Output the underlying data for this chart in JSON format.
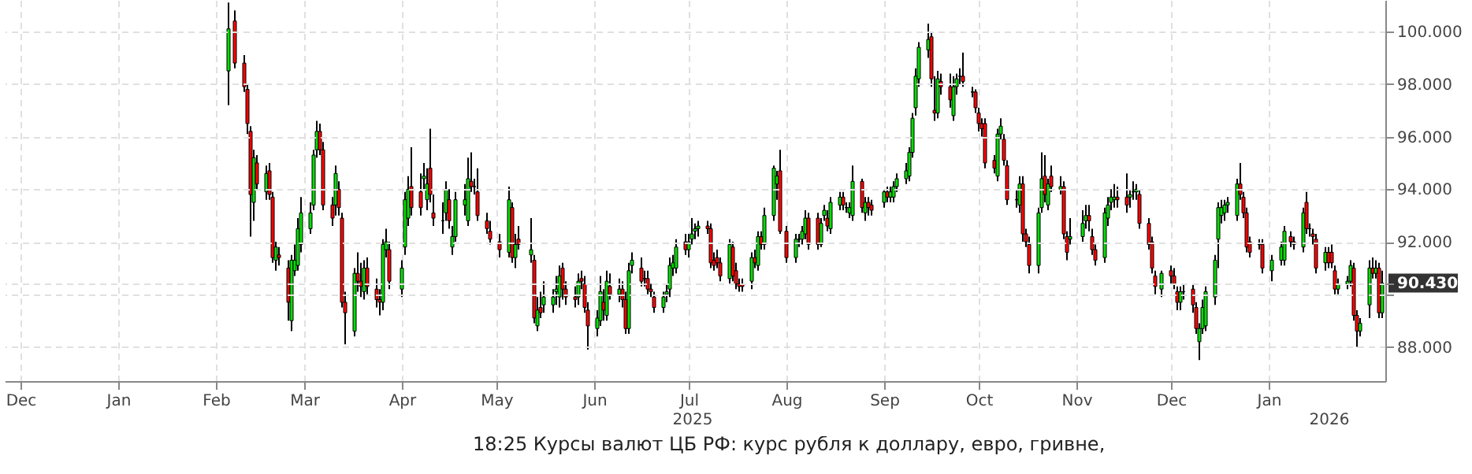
{
  "chart_data": {
    "type": "candlestick",
    "x": [
      "2025-02-05",
      "2025-02-07",
      "2025-02-10",
      "2025-02-11",
      "2025-02-12",
      "2025-02-13",
      "2025-02-14",
      "2025-02-17",
      "2025-02-18",
      "2025-02-19",
      "2025-02-20",
      "2025-02-21",
      "2025-02-24",
      "2025-02-25",
      "2025-02-26",
      "2025-02-27",
      "2025-02-28",
      "2025-03-03",
      "2025-03-04",
      "2025-03-05",
      "2025-03-06",
      "2025-03-07",
      "2025-03-10",
      "2025-03-11",
      "2025-03-12",
      "2025-03-13",
      "2025-03-14",
      "2025-03-17",
      "2025-03-18",
      "2025-03-19",
      "2025-03-20",
      "2025-03-21",
      "2025-03-24",
      "2025-03-25",
      "2025-03-26",
      "2025-03-27",
      "2025-03-28",
      "2025-04-01",
      "2025-04-02",
      "2025-04-03",
      "2025-04-04",
      "2025-04-07",
      "2025-04-08",
      "2025-04-09",
      "2025-04-10",
      "2025-04-11",
      "2025-04-14",
      "2025-04-15",
      "2025-04-16",
      "2025-04-17",
      "2025-04-18",
      "2025-04-21",
      "2025-04-22",
      "2025-04-23",
      "2025-04-24",
      "2025-04-25",
      "2025-04-28",
      "2025-04-29",
      "2025-05-02",
      "2025-05-05",
      "2025-05-06",
      "2025-05-07",
      "2025-05-08",
      "2025-05-12",
      "2025-05-13",
      "2025-05-14",
      "2025-05-15",
      "2025-05-16",
      "2025-05-19",
      "2025-05-20",
      "2025-05-21",
      "2025-05-22",
      "2025-05-23",
      "2025-05-26",
      "2025-05-27",
      "2025-05-28",
      "2025-05-29",
      "2025-05-30",
      "2025-06-02",
      "2025-06-03",
      "2025-06-04",
      "2025-06-05",
      "2025-06-06",
      "2025-06-09",
      "2025-06-10",
      "2025-06-11",
      "2025-06-12",
      "2025-06-13",
      "2025-06-16",
      "2025-06-17",
      "2025-06-18",
      "2025-06-19",
      "2025-06-20",
      "2025-06-23",
      "2025-06-24",
      "2025-06-25",
      "2025-06-26",
      "2025-06-27",
      "2025-06-30",
      "2025-07-01",
      "2025-07-02",
      "2025-07-03",
      "2025-07-04",
      "2025-07-07",
      "2025-07-08",
      "2025-07-09",
      "2025-07-10",
      "2025-07-11",
      "2025-07-14",
      "2025-07-15",
      "2025-07-16",
      "2025-07-17",
      "2025-07-18",
      "2025-07-21",
      "2025-07-22",
      "2025-07-23",
      "2025-07-24",
      "2025-07-25",
      "2025-07-28",
      "2025-07-29",
      "2025-07-30",
      "2025-08-01",
      "2025-08-04",
      "2025-08-05",
      "2025-08-06",
      "2025-08-07",
      "2025-08-08",
      "2025-08-11",
      "2025-08-12",
      "2025-08-13",
      "2025-08-14",
      "2025-08-15",
      "2025-08-18",
      "2025-08-19",
      "2025-08-20",
      "2025-08-21",
      "2025-08-22",
      "2025-08-25",
      "2025-08-26",
      "2025-08-27",
      "2025-08-28",
      "2025-09-01",
      "2025-09-02",
      "2025-09-03",
      "2025-09-04",
      "2025-09-05",
      "2025-09-08",
      "2025-09-09",
      "2025-09-10",
      "2025-09-11",
      "2025-09-12",
      "2025-09-15",
      "2025-09-16",
      "2025-09-17",
      "2025-09-18",
      "2025-09-19",
      "2025-09-22",
      "2025-09-23",
      "2025-09-24",
      "2025-09-25",
      "2025-09-26",
      "2025-09-29",
      "2025-09-30",
      "2025-10-01",
      "2025-10-02",
      "2025-10-03",
      "2025-10-06",
      "2025-10-07",
      "2025-10-08",
      "2025-10-09",
      "2025-10-10",
      "2025-10-13",
      "2025-10-14",
      "2025-10-15",
      "2025-10-16",
      "2025-10-17",
      "2025-10-20",
      "2025-10-21",
      "2025-10-22",
      "2025-10-23",
      "2025-10-24",
      "2025-10-27",
      "2025-10-28",
      "2025-10-29",
      "2025-10-30",
      "2025-11-03",
      "2025-11-04",
      "2025-11-05",
      "2025-11-06",
      "2025-11-07",
      "2025-11-10",
      "2025-11-11",
      "2025-11-12",
      "2025-11-13",
      "2025-11-14",
      "2025-11-17",
      "2025-11-18",
      "2025-11-19",
      "2025-11-20",
      "2025-11-21",
      "2025-11-24",
      "2025-11-25",
      "2025-11-26",
      "2025-11-28",
      "2025-12-01",
      "2025-12-02",
      "2025-12-03",
      "2025-12-04",
      "2025-12-05",
      "2025-12-08",
      "2025-12-09",
      "2025-12-10",
      "2025-12-11",
      "2025-12-12",
      "2025-12-15",
      "2025-12-16",
      "2025-12-17",
      "2025-12-18",
      "2025-12-19",
      "2025-12-22",
      "2025-12-23",
      "2025-12-24",
      "2025-12-25",
      "2025-12-26",
      "2025-12-29",
      "2025-12-30",
      "2026-01-02",
      "2026-01-05",
      "2026-01-06",
      "2026-01-08",
      "2026-01-09",
      "2026-01-12",
      "2026-01-13",
      "2026-01-14",
      "2026-01-15",
      "2026-01-16",
      "2026-01-19",
      "2026-01-20",
      "2026-01-21",
      "2026-01-22",
      "2026-01-23",
      "2026-01-26",
      "2026-01-27",
      "2026-01-28",
      "2026-01-29",
      "2026-01-30",
      "2026-02-02",
      "2026-02-03",
      "2026-02-04",
      "2026-02-05",
      "2026-02-06"
    ],
    "ohlc": [
      [
        98.5,
        101.1,
        97.2,
        100.1
      ],
      [
        100.4,
        100.8,
        98.6,
        98.8
      ],
      [
        98.8,
        99.1,
        97.7,
        97.9
      ],
      [
        97.8,
        98.0,
        96.1,
        96.5
      ],
      [
        96.2,
        96.4,
        92.2,
        93.8
      ],
      [
        93.5,
        95.5,
        92.8,
        95.2
      ],
      [
        95.0,
        95.3,
        94.0,
        94.2
      ],
      [
        93.9,
        94.9,
        93.6,
        94.6
      ],
      [
        94.7,
        95.0,
        93.6,
        93.8
      ],
      [
        93.7,
        93.9,
        91.2,
        91.4
      ],
      [
        91.3,
        92.0,
        90.9,
        91.8
      ],
      [
        91.5,
        91.8,
        91.1,
        91.4
      ],
      [
        91.0,
        91.3,
        89.0,
        89.7
      ],
      [
        89.0,
        91.5,
        88.6,
        91.3
      ],
      [
        90.9,
        91.9,
        90.7,
        91.3
      ],
      [
        91.1,
        92.9,
        90.9,
        92.5
      ],
      [
        91.9,
        93.7,
        91.6,
        93.1
      ],
      [
        92.5,
        93.5,
        92.3,
        93.1
      ],
      [
        93.4,
        95.5,
        93.2,
        95.3
      ],
      [
        95.5,
        96.6,
        95.2,
        96.2
      ],
      [
        96.2,
        96.5,
        95.3,
        95.5
      ],
      [
        95.5,
        95.8,
        93.2,
        93.4
      ],
      [
        93.4,
        93.7,
        92.6,
        92.9
      ],
      [
        93.4,
        94.9,
        93.0,
        94.6
      ],
      [
        94.0,
        94.3,
        93.0,
        93.3
      ],
      [
        92.9,
        93.1,
        89.5,
        89.7
      ],
      [
        89.7,
        90.1,
        88.1,
        89.3
      ],
      [
        88.6,
        91.0,
        88.4,
        90.8
      ],
      [
        90.8,
        91.6,
        90.1,
        90.5
      ],
      [
        90.5,
        91.2,
        89.9,
        90.3
      ],
      [
        90.1,
        91.3,
        89.8,
        91.0
      ],
      [
        91.0,
        91.4,
        90.0,
        90.3
      ],
      [
        90.2,
        90.6,
        89.5,
        89.8
      ],
      [
        89.8,
        90.2,
        89.2,
        89.7
      ],
      [
        89.7,
        92.1,
        89.4,
        91.9
      ],
      [
        91.7,
        92.5,
        91.4,
        92.0
      ],
      [
        91.7,
        92.0,
        90.2,
        90.5
      ],
      [
        90.2,
        91.3,
        89.9,
        91.0
      ],
      [
        91.8,
        93.9,
        91.5,
        93.6
      ],
      [
        92.9,
        94.5,
        92.6,
        94.0
      ],
      [
        94.1,
        95.6,
        93.0,
        93.3
      ],
      [
        93.9,
        94.6,
        93.0,
        93.3
      ],
      [
        94.4,
        95.0,
        94.0,
        94.5
      ],
      [
        93.6,
        94.8,
        93.2,
        94.2
      ],
      [
        94.8,
        96.3,
        93.5,
        93.8
      ],
      [
        93.1,
        93.8,
        92.6,
        92.9
      ],
      [
        92.8,
        93.5,
        92.3,
        92.8
      ],
      [
        93.1,
        94.3,
        92.8,
        94.0
      ],
      [
        93.6,
        94.0,
        92.5,
        92.8
      ],
      [
        91.8,
        92.6,
        91.5,
        92.2
      ],
      [
        92.2,
        93.9,
        92.0,
        93.6
      ],
      [
        93.4,
        94.2,
        93.0,
        93.6
      ],
      [
        92.8,
        95.2,
        92.6,
        94.4
      ],
      [
        94.3,
        95.4,
        93.9,
        94.1
      ],
      [
        94.1,
        94.4,
        93.8,
        94.1
      ],
      [
        93.9,
        94.8,
        92.8,
        93.0
      ],
      [
        92.8,
        93.1,
        92.3,
        92.5
      ],
      [
        92.4,
        92.8,
        91.9,
        92.1
      ],
      [
        92.0,
        92.3,
        91.4,
        91.7
      ],
      [
        91.6,
        94.1,
        91.4,
        93.6
      ],
      [
        93.3,
        93.5,
        91.2,
        91.4
      ],
      [
        91.4,
        92.3,
        91.0,
        91.9
      ],
      [
        92.1,
        92.6,
        91.7,
        91.9
      ],
      [
        91.5,
        92.9,
        91.2,
        91.7
      ],
      [
        91.3,
        91.5,
        88.9,
        89.1
      ],
      [
        88.8,
        89.9,
        88.6,
        89.4
      ],
      [
        89.5,
        90.1,
        89.1,
        89.3
      ],
      [
        89.6,
        90.5,
        89.3,
        89.9
      ],
      [
        89.6,
        90.2,
        89.3,
        89.9
      ],
      [
        90.1,
        90.7,
        89.6,
        90.2
      ],
      [
        89.9,
        91.1,
        89.5,
        90.7
      ],
      [
        91.0,
        91.2,
        89.8,
        90.2
      ],
      [
        90.2,
        90.5,
        89.6,
        89.9
      ],
      [
        89.9,
        90.3,
        89.5,
        89.8
      ],
      [
        89.9,
        90.8,
        89.6,
        90.5
      ],
      [
        90.6,
        90.9,
        90.2,
        90.5
      ],
      [
        90.4,
        90.7,
        89.3,
        89.5
      ],
      [
        89.4,
        89.7,
        87.9,
        88.8
      ],
      [
        88.7,
        89.4,
        88.4,
        89.1
      ],
      [
        89.0,
        90.7,
        88.8,
        90.1
      ],
      [
        89.7,
        90.2,
        89.0,
        89.4
      ],
      [
        89.2,
        90.9,
        89.0,
        90.5
      ],
      [
        90.3,
        90.8,
        89.8,
        90.0
      ],
      [
        90.0,
        90.6,
        89.7,
        90.2
      ],
      [
        90.2,
        90.5,
        89.5,
        89.8
      ],
      [
        89.8,
        90.1,
        88.5,
        88.7
      ],
      [
        88.7,
        91.2,
        88.5,
        90.9
      ],
      [
        91.1,
        91.6,
        90.8,
        91.3
      ],
      [
        91.0,
        91.4,
        90.3,
        90.5
      ],
      [
        90.6,
        90.9,
        90.3,
        90.6
      ],
      [
        90.6,
        90.9,
        90.0,
        90.2
      ],
      [
        90.2,
        90.4,
        89.9,
        90.1
      ],
      [
        89.9,
        90.1,
        89.3,
        89.5
      ],
      [
        89.5,
        90.1,
        89.3,
        89.9
      ],
      [
        90.0,
        90.4,
        89.7,
        90.1
      ],
      [
        90.2,
        91.4,
        89.9,
        91.1
      ],
      [
        91.0,
        91.5,
        90.7,
        91.2
      ],
      [
        91.0,
        92.1,
        90.8,
        91.8
      ],
      [
        92.0,
        92.3,
        91.5,
        91.7
      ],
      [
        91.7,
        92.3,
        91.4,
        92.0
      ],
      [
        92.1,
        92.9,
        91.9,
        92.3
      ],
      [
        92.4,
        92.7,
        92.1,
        92.5
      ],
      [
        92.5,
        92.8,
        92.2,
        92.6
      ],
      [
        92.6,
        92.8,
        92.3,
        92.5
      ],
      [
        92.5,
        92.7,
        91.0,
        91.2
      ],
      [
        91.3,
        91.6,
        90.9,
        91.1
      ],
      [
        91.4,
        91.7,
        91.0,
        91.2
      ],
      [
        91.2,
        91.4,
        90.5,
        90.7
      ],
      [
        90.6,
        92.1,
        90.4,
        91.9
      ],
      [
        91.8,
        92.0,
        90.5,
        90.7
      ],
      [
        90.9,
        91.2,
        90.2,
        90.4
      ],
      [
        90.4,
        90.6,
        90.1,
        90.3
      ],
      [
        90.4,
        90.6,
        90.1,
        90.3
      ],
      [
        90.5,
        91.6,
        90.2,
        91.4
      ],
      [
        91.4,
        91.7,
        91.0,
        91.2
      ],
      [
        91.1,
        92.4,
        90.9,
        92.2
      ],
      [
        92.2,
        92.4,
        91.7,
        91.9
      ],
      [
        91.9,
        93.3,
        91.7,
        93.0
      ],
      [
        93.0,
        94.9,
        92.8,
        94.8
      ],
      [
        94.2,
        94.7,
        93.6,
        94.5
      ],
      [
        94.7,
        95.5,
        92.3,
        92.4
      ],
      [
        92.4,
        92.6,
        91.2,
        91.4
      ],
      [
        91.4,
        92.3,
        91.2,
        92.1
      ],
      [
        92.1,
        92.3,
        91.8,
        92.1
      ],
      [
        92.1,
        92.6,
        91.9,
        92.4
      ],
      [
        92.3,
        93.2,
        92.1,
        92.9
      ],
      [
        92.9,
        93.1,
        91.7,
        91.9
      ],
      [
        92.9,
        93.1,
        91.7,
        91.9
      ],
      [
        91.9,
        92.9,
        91.8,
        92.7
      ],
      [
        93.0,
        93.4,
        92.8,
        93.2
      ],
      [
        92.9,
        93.2,
        92.4,
        92.6
      ],
      [
        92.5,
        93.7,
        92.3,
        93.5
      ],
      [
        93.4,
        93.9,
        93.2,
        93.7
      ],
      [
        93.7,
        93.9,
        93.2,
        93.4
      ],
      [
        93.3,
        93.5,
        93.1,
        93.3
      ],
      [
        93.1,
        93.5,
        92.9,
        93.3
      ],
      [
        93.0,
        94.9,
        92.8,
        94.3
      ],
      [
        94.3,
        94.4,
        93.1,
        93.3
      ],
      [
        93.1,
        93.7,
        92.8,
        93.5
      ],
      [
        93.5,
        93.7,
        93.0,
        93.3
      ],
      [
        93.4,
        93.6,
        93.0,
        93.2
      ],
      [
        93.5,
        94.0,
        93.3,
        93.9
      ],
      [
        93.9,
        94.1,
        93.5,
        93.7
      ],
      [
        93.7,
        94.1,
        93.5,
        93.9
      ],
      [
        93.7,
        94.3,
        93.5,
        94.1
      ],
      [
        94.1,
        94.6,
        93.9,
        94.4
      ],
      [
        94.4,
        95.0,
        94.2,
        94.7
      ],
      [
        94.5,
        95.6,
        94.3,
        95.4
      ],
      [
        95.4,
        96.9,
        95.2,
        96.7
      ],
      [
        97.1,
        98.6,
        96.8,
        98.3
      ],
      [
        98.2,
        99.6,
        97.9,
        99.4
      ],
      [
        99.3,
        100.3,
        99.0,
        99.7
      ],
      [
        99.8,
        100.0,
        97.9,
        98.2
      ],
      [
        97.0,
        98.3,
        96.6,
        96.9
      ],
      [
        96.9,
        98.5,
        96.7,
        98.2
      ],
      [
        98.1,
        98.4,
        97.6,
        97.9
      ],
      [
        97.9,
        98.4,
        97.1,
        97.4
      ],
      [
        96.8,
        98.3,
        96.6,
        97.9
      ],
      [
        97.9,
        98.4,
        97.6,
        98.2
      ],
      [
        98.3,
        98.6,
        98.0,
        98.3
      ],
      [
        98.3,
        99.2,
        97.9,
        98.1
      ],
      [
        97.7,
        97.9,
        97.5,
        97.7
      ],
      [
        97.7,
        97.8,
        96.9,
        97.1
      ],
      [
        96.9,
        97.1,
        96.2,
        96.5
      ],
      [
        96.5,
        96.7,
        96.0,
        96.3
      ],
      [
        96.5,
        96.7,
        94.8,
        95.0
      ],
      [
        95.1,
        95.3,
        94.6,
        94.8
      ],
      [
        94.5,
        96.3,
        94.3,
        96.1
      ],
      [
        96.1,
        96.7,
        95.9,
        96.4
      ],
      [
        95.9,
        96.1,
        94.9,
        95.1
      ],
      [
        94.9,
        95.1,
        93.4,
        93.6
      ],
      [
        93.6,
        94.0,
        93.3,
        93.6
      ],
      [
        93.4,
        94.5,
        93.1,
        94.2
      ],
      [
        94.2,
        94.5,
        92.0,
        92.3
      ],
      [
        92.3,
        92.5,
        91.8,
        92.0
      ],
      [
        91.9,
        92.2,
        90.8,
        91.1
      ],
      [
        91.1,
        93.3,
        90.8,
        93.1
      ],
      [
        93.3,
        95.4,
        93.1,
        94.4
      ],
      [
        94.5,
        95.3,
        93.5,
        93.8
      ],
      [
        93.4,
        94.4,
        93.2,
        94.2
      ],
      [
        94.5,
        94.9,
        93.9,
        94.1
      ],
      [
        94.0,
        94.5,
        93.8,
        94.1
      ],
      [
        94.1,
        94.3,
        92.1,
        92.3
      ],
      [
        92.2,
        92.4,
        91.3,
        91.6
      ],
      [
        92.1,
        92.9,
        91.9,
        92.2
      ],
      [
        92.2,
        93.2,
        92.0,
        92.7
      ],
      [
        92.8,
        93.4,
        92.5,
        93.0
      ],
      [
        93.0,
        93.4,
        92.4,
        92.8
      ],
      [
        92.2,
        92.5,
        91.5,
        91.7
      ],
      [
        91.7,
        91.9,
        91.1,
        91.3
      ],
      [
        91.4,
        93.3,
        91.2,
        93.1
      ],
      [
        92.9,
        93.7,
        92.6,
        93.4
      ],
      [
        93.5,
        94.0,
        93.2,
        93.7
      ],
      [
        93.6,
        94.2,
        93.3,
        93.7
      ],
      [
        93.7,
        94.1,
        93.3,
        93.6
      ],
      [
        93.7,
        94.6,
        93.1,
        93.4
      ],
      [
        93.7,
        94.0,
        93.3,
        93.8
      ],
      [
        93.9,
        94.3,
        93.6,
        93.9
      ],
      [
        93.9,
        94.2,
        93.6,
        94.0
      ],
      [
        93.8,
        94.0,
        92.5,
        92.7
      ],
      [
        92.7,
        92.9,
        91.7,
        91.9
      ],
      [
        92.0,
        92.2,
        90.8,
        91.0
      ],
      [
        90.7,
        90.9,
        90.0,
        90.3
      ],
      [
        90.2,
        90.9,
        89.9,
        90.8
      ],
      [
        90.9,
        91.1,
        90.4,
        90.7
      ],
      [
        90.7,
        91.0,
        90.2,
        90.4
      ],
      [
        90.1,
        90.3,
        89.4,
        89.7
      ],
      [
        89.7,
        90.3,
        89.4,
        90.1
      ],
      [
        90.1,
        90.4,
        89.8,
        90.1
      ],
      [
        90.2,
        90.4,
        89.3,
        89.6
      ],
      [
        89.5,
        89.7,
        88.5,
        88.7
      ],
      [
        88.2,
        88.9,
        87.5,
        88.7
      ],
      [
        88.7,
        89.8,
        88.5,
        89.5
      ],
      [
        88.8,
        90.3,
        88.6,
        90.1
      ],
      [
        89.9,
        91.5,
        89.6,
        91.3
      ],
      [
        92.1,
        93.5,
        91.0,
        93.3
      ],
      [
        93.0,
        93.6,
        92.7,
        93.3
      ],
      [
        93.1,
        93.6,
        92.8,
        93.4
      ],
      [
        93.4,
        93.7,
        93.1,
        93.5
      ],
      [
        93.0,
        94.4,
        92.8,
        94.2
      ],
      [
        94.2,
        95.0,
        93.6,
        93.8
      ],
      [
        93.7,
        93.9,
        92.9,
        93.1
      ],
      [
        93.1,
        93.3,
        91.6,
        91.8
      ],
      [
        92.0,
        92.2,
        91.4,
        91.6
      ],
      [
        91.9,
        92.1,
        91.7,
        91.9
      ],
      [
        91.9,
        92.1,
        90.8,
        91.0
      ],
      [
        90.9,
        91.5,
        90.5,
        91.3
      ],
      [
        91.3,
        92.0,
        91.1,
        91.8
      ],
      [
        91.3,
        92.6,
        91.1,
        92.4
      ],
      [
        92.2,
        92.4,
        91.8,
        92.0
      ],
      [
        92.0,
        92.2,
        91.7,
        91.9
      ],
      [
        91.8,
        93.3,
        91.6,
        93.1
      ],
      [
        93.5,
        93.9,
        92.3,
        92.5
      ],
      [
        92.5,
        92.7,
        92.2,
        92.5
      ],
      [
        92.3,
        92.5,
        91.9,
        92.2
      ],
      [
        92.1,
        92.3,
        90.8,
        91.0
      ],
      [
        91.2,
        91.8,
        90.9,
        91.6
      ],
      [
        91.6,
        91.8,
        91.0,
        91.2
      ],
      [
        91.6,
        91.9,
        91.0,
        91.2
      ],
      [
        90.9,
        91.1,
        90.0,
        90.2
      ],
      [
        90.2,
        90.6,
        90.0,
        90.4
      ],
      [
        90.4,
        90.7,
        90.2,
        90.5
      ],
      [
        90.5,
        91.3,
        90.3,
        91.1
      ],
      [
        91.0,
        91.2,
        89.0,
        89.2
      ],
      [
        89.2,
        89.4,
        88.0,
        88.6
      ],
      [
        88.6,
        89.1,
        88.4,
        88.9
      ],
      [
        89.6,
        91.3,
        89.1,
        91.0
      ],
      [
        91.0,
        91.4,
        90.6,
        90.8
      ],
      [
        90.8,
        91.3,
        90.6,
        91.0
      ],
      [
        91.0,
        91.2,
        89.1,
        89.3
      ],
      [
        89.3,
        90.9,
        89.1,
        90.43
      ]
    ],
    "xlim": [
      "2024-11-26",
      "2026-02-07"
    ],
    "xticks": [
      {
        "value": "2024-12-01",
        "label": "Dec"
      },
      {
        "value": "2025-01-01",
        "label": "Jan"
      },
      {
        "value": "2025-02-01",
        "label": "Feb"
      },
      {
        "value": "2025-03-01",
        "label": "Mar"
      },
      {
        "value": "2025-04-01",
        "label": "Apr"
      },
      {
        "value": "2025-05-01",
        "label": "May"
      },
      {
        "value": "2025-06-01",
        "label": "Jun"
      },
      {
        "value": "2025-07-01",
        "label": "Jul"
      },
      {
        "value": "2025-08-01",
        "label": "Aug"
      },
      {
        "value": "2025-09-01",
        "label": "Sep"
      },
      {
        "value": "2025-10-01",
        "label": "Oct"
      },
      {
        "value": "2025-11-01",
        "label": "Nov"
      },
      {
        "value": "2025-12-01",
        "label": "Dec"
      },
      {
        "value": "2026-01-01",
        "label": "Jan"
      }
    ],
    "ylim": [
      86.7,
      101.2
    ],
    "yticks": [
      {
        "value": 88,
        "label": "88.000"
      },
      {
        "value": 90,
        "label": null
      },
      {
        "value": 92,
        "label": "92.000"
      },
      {
        "value": 94,
        "label": "94.000"
      },
      {
        "value": 96,
        "label": "96.000"
      },
      {
        "value": 98,
        "label": "98.000"
      },
      {
        "value": 100,
        "label": "100.000"
      },
      {
        "value": 90.43,
        "label": "90.430"
      }
    ],
    "x2lim": [
      "2024-11-26",
      "2026-02-07"
    ],
    "x2ticks": [
      {
        "value": "2025-07-02",
        "label": "2025"
      },
      {
        "value": "2026-01-20",
        "label": "2026"
      }
    ],
    "annotations": [
      "18:25 Курсы валют ЦБ РФ: курс рубля к доллару, евро, гривне,"
    ],
    "grid": true
  }
}
